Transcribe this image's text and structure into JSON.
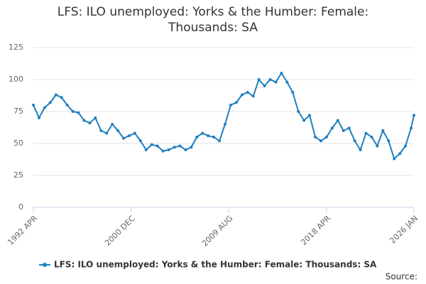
{
  "chart_data": {
    "type": "line",
    "title": "LFS: ILO unemployed: Yorks & the Humber: Female: Thousands: SA",
    "source": "Source:",
    "x": [
      1992.25,
      1992.75,
      1993.25,
      1993.75,
      1994.25,
      1994.75,
      1995.25,
      1995.75,
      1996.25,
      1996.75,
      1997.25,
      1997.75,
      1998.25,
      1998.75,
      1999.25,
      1999.75,
      2000.25,
      2000.75,
      2001.25,
      2001.75,
      2002.25,
      2002.75,
      2003.25,
      2003.75,
      2004.25,
      2004.75,
      2005.25,
      2005.75,
      2006.25,
      2006.75,
      2007.25,
      2007.75,
      2008.25,
      2008.75,
      2009.25,
      2009.75,
      2010.25,
      2010.75,
      2011.25,
      2011.75,
      2012.25,
      2012.75,
      2013.25,
      2013.75,
      2014.25,
      2014.75,
      2015.25,
      2015.75,
      2016.25,
      2016.75,
      2017.25,
      2017.75,
      2018.25,
      2018.75,
      2019.25,
      2019.75,
      2020.25,
      2020.75,
      2021.25,
      2021.75,
      2022.25,
      2022.75,
      2023.25,
      2023.75,
      2024.25,
      2024.75,
      2025.25,
      2025.75,
      2026.0
    ],
    "series": [
      {
        "name": "LFS: ILO unemployed: Yorks & the Humber: Female: Thousands: SA",
        "color": "#1f7fc0",
        "values": [
          80,
          70,
          78,
          82,
          88,
          86,
          80,
          75,
          74,
          68,
          66,
          70,
          60,
          58,
          65,
          60,
          54,
          56,
          58,
          52,
          45,
          49,
          48,
          44,
          45,
          47,
          48,
          45,
          47,
          55,
          58,
          56,
          55,
          52,
          65,
          80,
          82,
          88,
          90,
          87,
          100,
          95,
          100,
          98,
          105,
          98,
          90,
          75,
          68,
          72,
          55,
          52,
          55,
          62,
          68,
          60,
          62,
          52,
          45,
          58,
          55,
          48,
          60,
          52,
          38,
          42,
          48,
          62,
          72
        ]
      }
    ],
    "xlim": [
      1992.25,
      2026.0
    ],
    "xticks": [
      {
        "value": 1992.25,
        "label": "1992 APR"
      },
      {
        "value": 2000.917,
        "label": "2000 DEC"
      },
      {
        "value": 2009.583,
        "label": "2009 AUG"
      },
      {
        "value": 2018.25,
        "label": "2018 APR"
      },
      {
        "value": 2026.0,
        "label": "2026 JAN"
      }
    ],
    "ylim": [
      0,
      125
    ],
    "yticks": [
      0,
      25,
      50,
      75,
      100,
      125
    ],
    "grid": true
  }
}
